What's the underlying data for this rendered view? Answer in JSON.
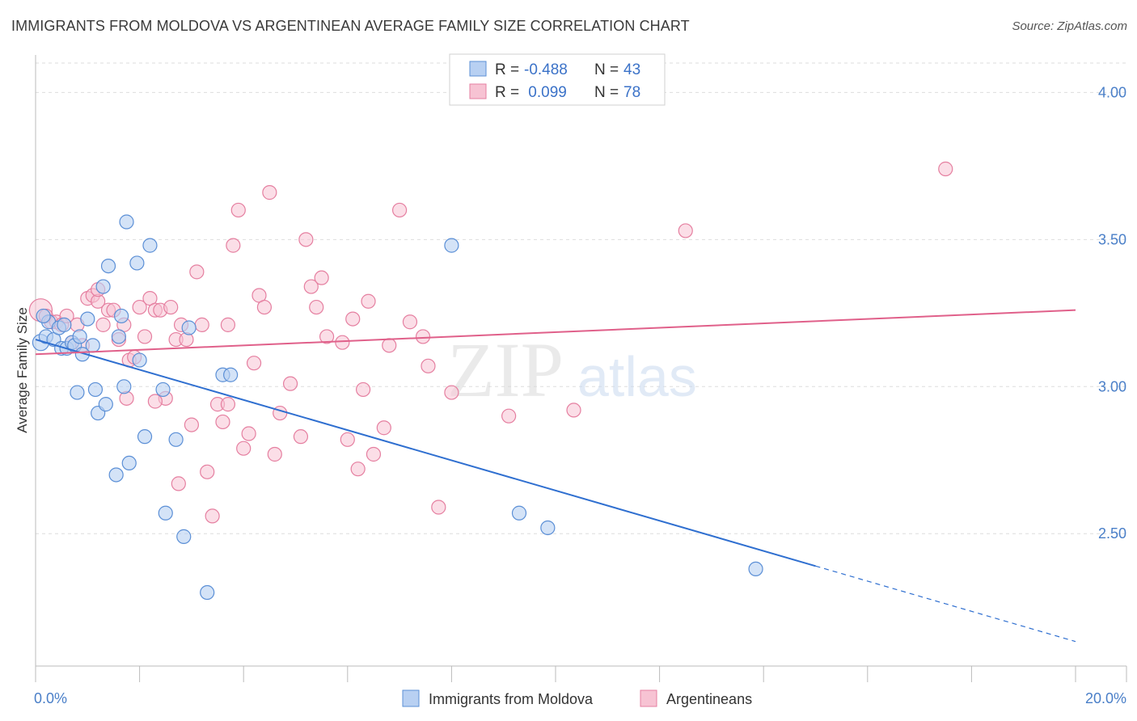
{
  "title": "IMMIGRANTS FROM MOLDOVA VS ARGENTINEAN AVERAGE FAMILY SIZE CORRELATION CHART",
  "source": "Source: ZipAtlas.com",
  "watermark": {
    "zip": "ZIP",
    "atlas": "atlas"
  },
  "colors": {
    "blue": "#5b8fd6",
    "blue_fill": "#b8d0f2",
    "blue_line": "#2f6fd0",
    "pink": "#e57fa0",
    "pink_fill": "#f7c3d3",
    "pink_line": "#e0608a",
    "grid": "#dddddd",
    "tick_text": "#4a7fc8"
  },
  "legend": {
    "rows": [
      {
        "r_label": "R =",
        "r_value": "-0.488",
        "n_label": "N =",
        "n_value": "43"
      },
      {
        "r_label": "R =",
        "r_value": " 0.099",
        "n_label": "N =",
        "n_value": "78"
      }
    ]
  },
  "bottom_legend": [
    "Immigrants from Moldova",
    "Argentineans"
  ],
  "chart_data": {
    "type": "scatter",
    "xlabel": "",
    "ylabel": "Average Family Size",
    "xlim": [
      0,
      20
    ],
    "ylim": [
      2.05,
      4.1
    ],
    "x_tick_labels": [
      "0.0%",
      "20.0%"
    ],
    "y_ticks": [
      2.5,
      3.0,
      3.5,
      4.0
    ],
    "y_tick_labels": [
      "2.50",
      "3.00",
      "3.50",
      "4.00"
    ],
    "grid": true,
    "legend_position": "top-center",
    "series": [
      {
        "name": "Immigrants from Moldova",
        "r": -0.488,
        "n": 43,
        "trend": {
          "x0": 0,
          "y0": 3.16,
          "x1": 15.0,
          "y1": 2.39,
          "dash_to": 20.0
        },
        "points": [
          [
            0.1,
            3.15
          ],
          [
            0.2,
            3.17
          ],
          [
            0.25,
            3.22
          ],
          [
            0.35,
            3.16
          ],
          [
            0.45,
            3.2
          ],
          [
            0.5,
            3.13
          ],
          [
            0.6,
            3.13
          ],
          [
            0.7,
            3.15
          ],
          [
            0.75,
            3.14
          ],
          [
            0.8,
            2.98
          ],
          [
            0.85,
            3.17
          ],
          [
            0.9,
            3.11
          ],
          [
            1.0,
            3.23
          ],
          [
            1.1,
            3.14
          ],
          [
            1.15,
            2.99
          ],
          [
            1.2,
            2.91
          ],
          [
            1.3,
            3.34
          ],
          [
            1.35,
            2.94
          ],
          [
            1.4,
            3.41
          ],
          [
            1.55,
            2.7
          ],
          [
            1.6,
            3.17
          ],
          [
            1.65,
            3.24
          ],
          [
            1.7,
            3.0
          ],
          [
            1.75,
            3.56
          ],
          [
            1.8,
            2.74
          ],
          [
            1.95,
            3.42
          ],
          [
            2.0,
            3.09
          ],
          [
            2.1,
            2.83
          ],
          [
            2.2,
            3.48
          ],
          [
            2.45,
            2.99
          ],
          [
            2.5,
            2.57
          ],
          [
            2.7,
            2.82
          ],
          [
            2.85,
            2.49
          ],
          [
            2.95,
            3.2
          ],
          [
            3.3,
            2.3
          ],
          [
            3.6,
            3.04
          ],
          [
            3.75,
            3.04
          ],
          [
            8.0,
            3.48
          ],
          [
            9.3,
            2.57
          ],
          [
            9.85,
            2.52
          ],
          [
            13.85,
            2.38
          ],
          [
            0.15,
            3.24
          ],
          [
            0.55,
            3.21
          ]
        ]
      },
      {
        "name": "Argentineans",
        "r": 0.099,
        "n": 78,
        "trend": {
          "x0": 0,
          "y0": 3.11,
          "x1": 20.0,
          "y1": 3.26
        },
        "points": [
          [
            0.1,
            3.26
          ],
          [
            0.2,
            3.24
          ],
          [
            0.3,
            3.22
          ],
          [
            0.4,
            3.22
          ],
          [
            0.5,
            3.21
          ],
          [
            0.6,
            3.24
          ],
          [
            0.7,
            3.15
          ],
          [
            0.8,
            3.21
          ],
          [
            0.9,
            3.14
          ],
          [
            1.0,
            3.3
          ],
          [
            1.1,
            3.31
          ],
          [
            1.2,
            3.29
          ],
          [
            1.3,
            3.21
          ],
          [
            1.4,
            3.26
          ],
          [
            1.5,
            3.26
          ],
          [
            1.6,
            3.16
          ],
          [
            1.7,
            3.21
          ],
          [
            1.75,
            2.96
          ],
          [
            1.8,
            3.09
          ],
          [
            1.9,
            3.1
          ],
          [
            2.0,
            3.27
          ],
          [
            2.1,
            3.17
          ],
          [
            2.2,
            3.3
          ],
          [
            2.3,
            3.26
          ],
          [
            2.4,
            3.26
          ],
          [
            2.5,
            2.96
          ],
          [
            2.6,
            3.27
          ],
          [
            2.7,
            3.16
          ],
          [
            2.75,
            2.67
          ],
          [
            2.8,
            3.21
          ],
          [
            2.9,
            3.16
          ],
          [
            3.0,
            2.87
          ],
          [
            3.1,
            3.39
          ],
          [
            3.2,
            3.21
          ],
          [
            3.3,
            2.71
          ],
          [
            3.4,
            2.56
          ],
          [
            3.5,
            2.94
          ],
          [
            3.6,
            2.88
          ],
          [
            3.7,
            3.21
          ],
          [
            3.8,
            3.48
          ],
          [
            3.9,
            3.6
          ],
          [
            4.0,
            2.79
          ],
          [
            4.1,
            2.84
          ],
          [
            4.2,
            3.08
          ],
          [
            4.3,
            3.31
          ],
          [
            4.4,
            3.27
          ],
          [
            4.5,
            3.66
          ],
          [
            4.6,
            2.77
          ],
          [
            4.9,
            3.01
          ],
          [
            5.1,
            2.83
          ],
          [
            5.2,
            3.5
          ],
          [
            5.3,
            3.34
          ],
          [
            5.4,
            3.27
          ],
          [
            5.5,
            3.37
          ],
          [
            5.6,
            3.17
          ],
          [
            5.9,
            3.15
          ],
          [
            6.0,
            2.82
          ],
          [
            6.1,
            3.23
          ],
          [
            6.2,
            2.72
          ],
          [
            6.3,
            2.99
          ],
          [
            6.4,
            3.29
          ],
          [
            6.5,
            2.77
          ],
          [
            6.7,
            2.86
          ],
          [
            6.8,
            3.14
          ],
          [
            7.0,
            3.6
          ],
          [
            7.2,
            3.22
          ],
          [
            7.45,
            3.17
          ],
          [
            7.55,
            3.07
          ],
          [
            7.75,
            2.59
          ],
          [
            8.0,
            2.98
          ],
          [
            9.1,
            2.9
          ],
          [
            10.35,
            2.92
          ],
          [
            12.5,
            3.53
          ],
          [
            17.5,
            3.74
          ],
          [
            2.3,
            2.95
          ],
          [
            4.7,
            2.91
          ],
          [
            1.2,
            3.33
          ],
          [
            3.7,
            2.94
          ]
        ]
      }
    ]
  }
}
